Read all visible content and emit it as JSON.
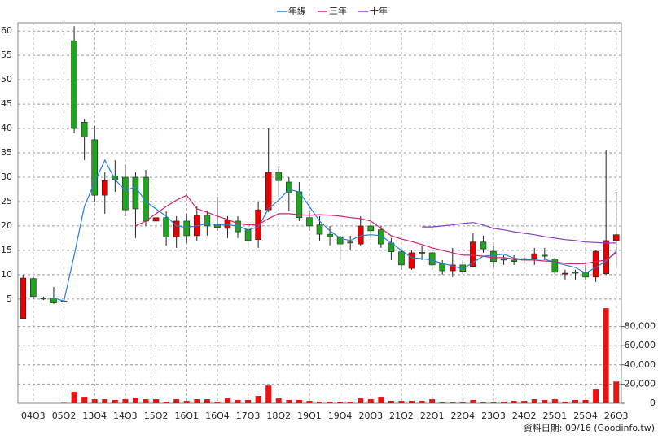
{
  "chart_data": [
    {
      "type": "candlestick",
      "legend": "top",
      "categories": [
        null,
        "04Q3",
        null,
        null,
        "05Q2",
        null,
        null,
        "13Q4",
        null,
        null,
        "14Q3",
        null,
        null,
        "15Q2",
        null,
        null,
        "16Q1",
        null,
        null,
        "16Q4",
        null,
        null,
        "17Q3",
        null,
        null,
        "18Q2",
        null,
        null,
        "19Q1",
        null,
        null,
        "19Q4",
        null,
        null,
        "20Q3",
        null,
        null,
        "21Q2",
        null,
        null,
        "22Q1",
        null,
        null,
        "22Q4",
        null,
        null,
        "23Q3",
        null,
        null,
        "24Q2",
        null,
        null,
        "25Q1",
        null,
        null,
        "25Q4",
        null,
        null,
        "26Q3"
      ],
      "open": [
        1,
        9.2,
        5.2,
        5.2,
        4.6,
        58,
        41.3,
        37.7,
        26.3,
        30.3,
        30,
        30,
        30,
        21,
        21.7,
        17.7,
        21,
        18,
        22.2,
        20.3,
        19.5,
        21,
        19.2,
        17.2,
        23.3,
        31,
        29,
        27,
        21.7,
        20.2,
        18.3,
        17.8,
        16.7,
        16.3,
        20,
        19.2,
        16.5,
        14.7,
        11.3,
        14.6,
        14.5,
        12.3,
        10.8,
        12,
        11.7,
        16.7,
        14.8,
        13.2,
        13,
        13.3,
        13.3,
        14,
        13.2,
        10.3,
        10.5,
        10.5,
        9.5,
        10.2,
        17
      ],
      "high": [
        10,
        9.5,
        5.5,
        7.5,
        5,
        61,
        42,
        40.5,
        31,
        33.5,
        32.5,
        31,
        31.5,
        24,
        23,
        22,
        22.5,
        24,
        23,
        26,
        22,
        22,
        20,
        25,
        40,
        32,
        30,
        29,
        23,
        22,
        20,
        18,
        18,
        22,
        34.5,
        20,
        17.5,
        15,
        15,
        16,
        15,
        13,
        15.5,
        13,
        18.5,
        18,
        16,
        14,
        14,
        14,
        15.5,
        15.5,
        13.5,
        11,
        11,
        12,
        15,
        35.5,
        27
      ],
      "low": [
        1,
        5,
        4.8,
        4,
        3.8,
        39,
        33.5,
        25,
        22.5,
        27,
        22,
        17.5,
        20,
        20,
        16,
        15.5,
        16.5,
        17,
        18,
        19,
        17.5,
        17.5,
        15.5,
        15.5,
        22.8,
        26,
        23,
        21,
        19,
        17,
        16,
        13,
        15,
        16,
        17.5,
        15.5,
        13,
        11,
        11,
        13,
        11,
        10,
        9.5,
        10,
        11.5,
        14.5,
        11.5,
        12,
        12,
        12.5,
        12,
        13,
        9.5,
        9,
        9,
        9,
        8.5,
        10,
        11.5
      ],
      "close": [
        9.3,
        5.5,
        5,
        4.2,
        4.4,
        40,
        38.3,
        26.3,
        29.3,
        29.5,
        23.3,
        23.5,
        21,
        21.7,
        17.7,
        21,
        18,
        22.2,
        20,
        19.7,
        21.2,
        18.8,
        17,
        23.3,
        31,
        29.3,
        26.8,
        21.7,
        20,
        18.3,
        17.8,
        16.3,
        16.5,
        20,
        19,
        16.3,
        14.7,
        12,
        14.5,
        14.4,
        12,
        10.8,
        12,
        10.7,
        16.7,
        15.3,
        12.7,
        13,
        12.7,
        13,
        14.3,
        13.8,
        10.5,
        10.3,
        10.3,
        9.5,
        14.8,
        17,
        18.2
      ],
      "up_color": "#e60000",
      "down_color": "#1fa51f",
      "series": [
        {
          "name": "年線",
          "color": "#2a7fd4",
          "values": [
            null,
            null,
            null,
            5.2,
            4.6,
            14,
            24,
            29,
            33.5,
            29.5,
            27.3,
            28,
            25,
            23.5,
            22,
            20,
            19.7,
            20,
            20.5,
            20.2,
            20.2,
            20,
            19.2,
            19.8,
            23.5,
            25.3,
            27.5,
            27,
            24,
            21,
            19,
            17.5,
            17,
            18,
            18.2,
            18,
            16.5,
            15,
            13.5,
            13.3,
            13,
            12.3,
            11.8,
            11.2,
            12.5,
            13.8,
            14,
            14.2,
            13.4,
            13.1,
            13.2,
            13.2,
            12.5,
            12,
            11.5,
            10.3,
            11.5,
            12.8,
            14.8
          ]
        },
        {
          "name": "三年",
          "color": "#d2236a",
          "values": [
            null,
            null,
            null,
            null,
            null,
            null,
            null,
            null,
            null,
            null,
            null,
            20,
            21,
            22.5,
            24,
            25.3,
            26.3,
            23.5,
            22.8,
            22,
            21.3,
            20.5,
            20.2,
            20.3,
            21.5,
            22.5,
            22.5,
            22.3,
            22.2,
            22.3,
            22.2,
            22,
            21.7,
            21.5,
            21,
            19.5,
            18,
            17.3,
            16.8,
            16.2,
            15.5,
            15,
            14.5,
            14,
            14,
            13.8,
            13.5,
            13.5,
            13.2,
            13,
            13,
            12.8,
            12.7,
            12.3,
            12.2,
            12.3,
            12.7,
            13,
            14.5
          ]
        },
        {
          "name": "十年",
          "color": "#8a3cc8",
          "values": [
            null,
            null,
            null,
            null,
            null,
            null,
            null,
            null,
            null,
            null,
            null,
            null,
            null,
            null,
            null,
            null,
            null,
            null,
            null,
            null,
            null,
            null,
            null,
            null,
            null,
            null,
            null,
            null,
            null,
            null,
            null,
            null,
            null,
            null,
            null,
            null,
            null,
            null,
            null,
            19.8,
            19.8,
            20,
            20.2,
            20.5,
            20.7,
            20.2,
            19.5,
            19.2,
            18.8,
            18.5,
            18.2,
            17.8,
            17.5,
            17.2,
            17,
            16.7,
            16.6,
            16.5,
            16.5
          ]
        }
      ],
      "ylim": [
        0.3,
        61.7
      ],
      "yticks": [
        5,
        10,
        15,
        20,
        25,
        30,
        35,
        40,
        45,
        50,
        55,
        60
      ],
      "grid": true
    },
    {
      "type": "bar",
      "values": [
        0,
        0,
        0,
        0,
        500,
        11800,
        6700,
        4200,
        4200,
        3400,
        4200,
        5900,
        4200,
        4200,
        1700,
        4200,
        2500,
        4200,
        4200,
        1700,
        5000,
        3400,
        3400,
        7600,
        18500,
        5000,
        3400,
        3400,
        2500,
        1700,
        1700,
        1700,
        1700,
        5000,
        4200,
        6700,
        2500,
        2500,
        2500,
        2500,
        4200,
        800,
        800,
        800,
        3400,
        800,
        800,
        1700,
        2500,
        2500,
        4200,
        3400,
        4200,
        1700,
        3400,
        3400,
        14300,
        99000,
        22700
      ],
      "color": "#ee1111",
      "ylim": [
        0,
        100000
      ],
      "yticks": [
        0,
        {
          "value": 20000,
          "label": "20,000"
        },
        {
          "value": 40000,
          "label": "40,000"
        },
        {
          "value": 60000,
          "label": "60,000"
        },
        {
          "value": 80000,
          "label": "80,000"
        }
      ],
      "grid": true
    }
  ],
  "footer": "資料日期: 09/16 (Goodinfo.tw)"
}
